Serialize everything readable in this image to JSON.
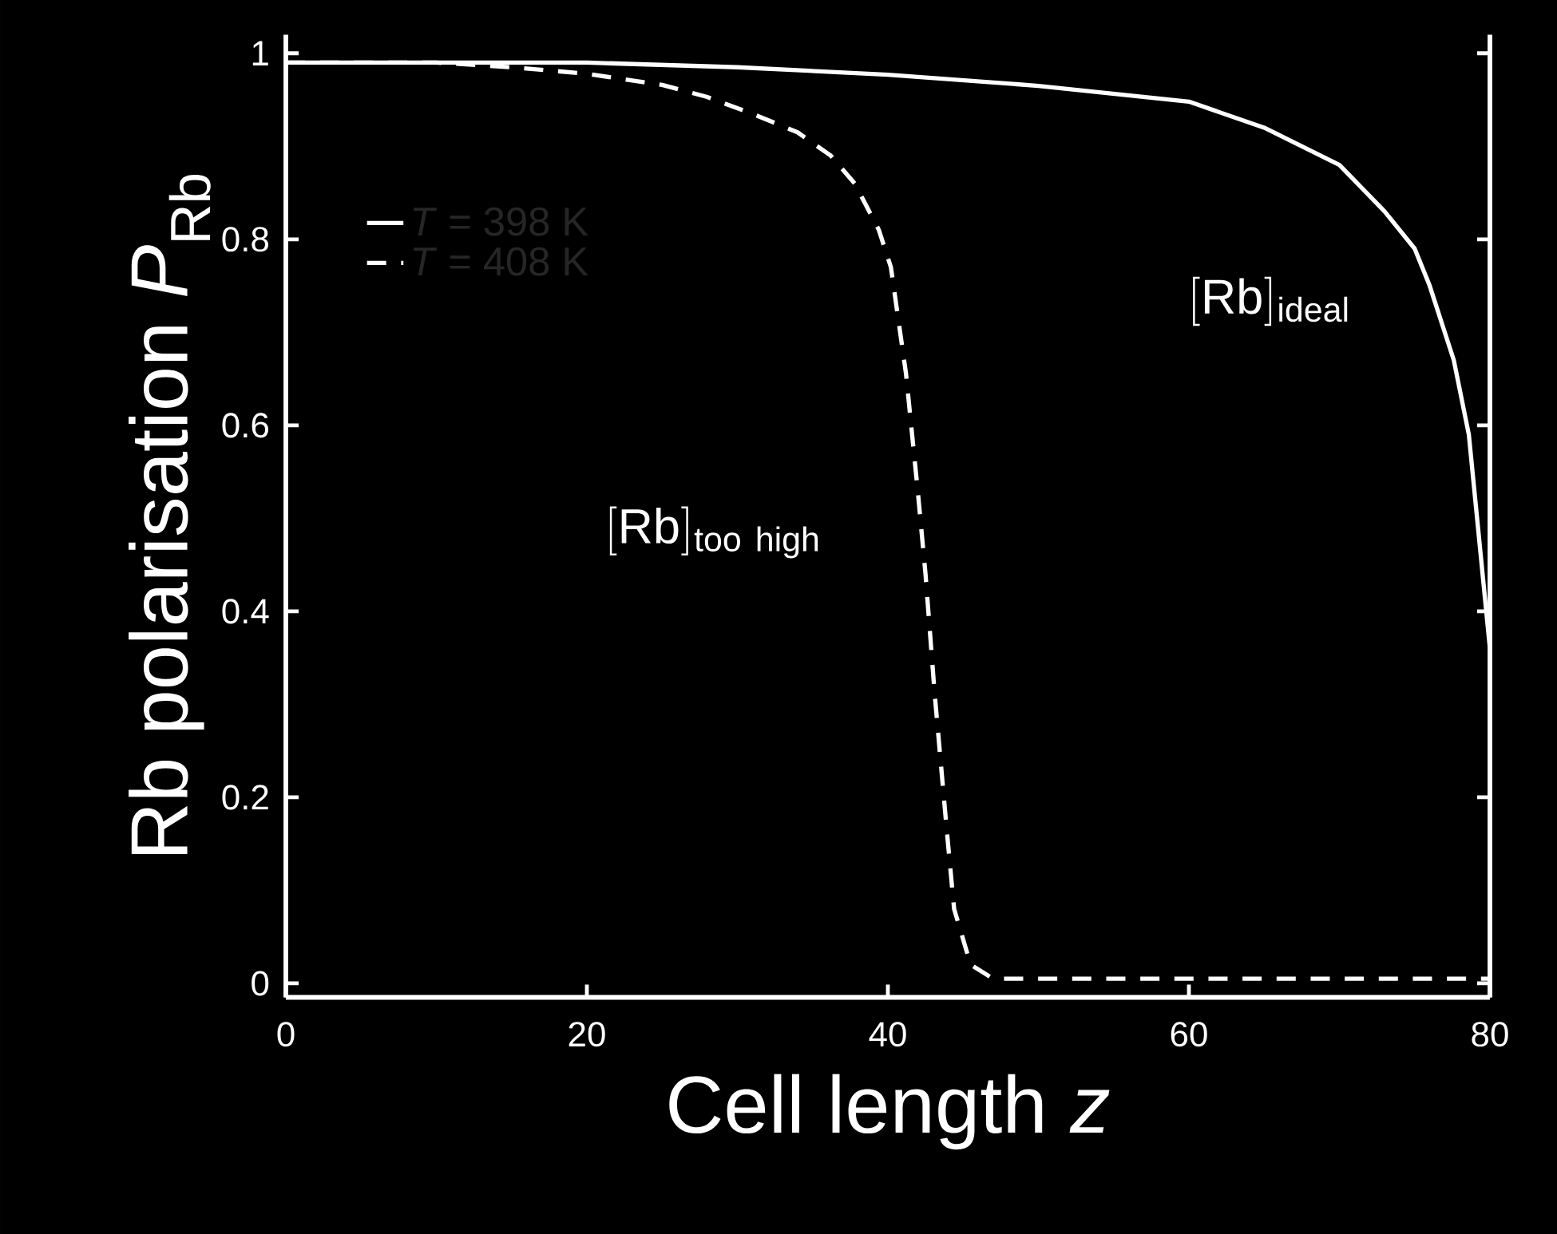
{
  "chart_data": {
    "type": "line",
    "xlabel": "Cell length *z*",
    "ylabel": "Rb polarisation *P*$_{Rb}$",
    "xlim": [
      0,
      80
    ],
    "ylim": [
      -0.015,
      1.02
    ],
    "xticks": [
      0,
      20,
      40,
      60,
      80
    ],
    "yticks": [
      0,
      0.2,
      0.4,
      0.6,
      0.8,
      1
    ],
    "legend": "top left",
    "series": [
      {
        "name": "*T* = 398 K",
        "color": "#ffffff",
        "line_style": "solid",
        "x": [
          0,
          10,
          20,
          30,
          40,
          50,
          60,
          65,
          70,
          73,
          75,
          76,
          77.6,
          78.6,
          80
        ],
        "values": [
          0.99,
          0.99,
          0.99,
          0.985,
          0.977,
          0.965,
          0.948,
          0.92,
          0.88,
          0.83,
          0.79,
          0.75,
          0.67,
          0.59,
          0.36
        ]
      },
      {
        "name": "*T* = 408 K",
        "color": "#ffffff",
        "line_style": "dashed",
        "x": [
          0,
          10,
          15,
          20,
          25,
          28,
          31,
          34,
          36.2,
          37.8,
          39.4,
          40.2,
          41.2,
          42,
          42.5,
          43.1,
          43.9,
          44.4,
          45.5,
          47,
          60,
          80
        ],
        "values": [
          0.99,
          0.99,
          0.985,
          0.978,
          0.966,
          0.953,
          0.935,
          0.915,
          0.89,
          0.86,
          0.81,
          0.77,
          0.656,
          0.527,
          0.44,
          0.313,
          0.167,
          0.08,
          0.02,
          0.005,
          0.005,
          0.005
        ]
      }
    ],
    "annotations": [
      "[\\mathrm{Rb}]_{\\mathrm{ideal}}",
      "[\\mathrm{Rb}]_{\\mathrm{too\\ high}}"
    ]
  }
}
